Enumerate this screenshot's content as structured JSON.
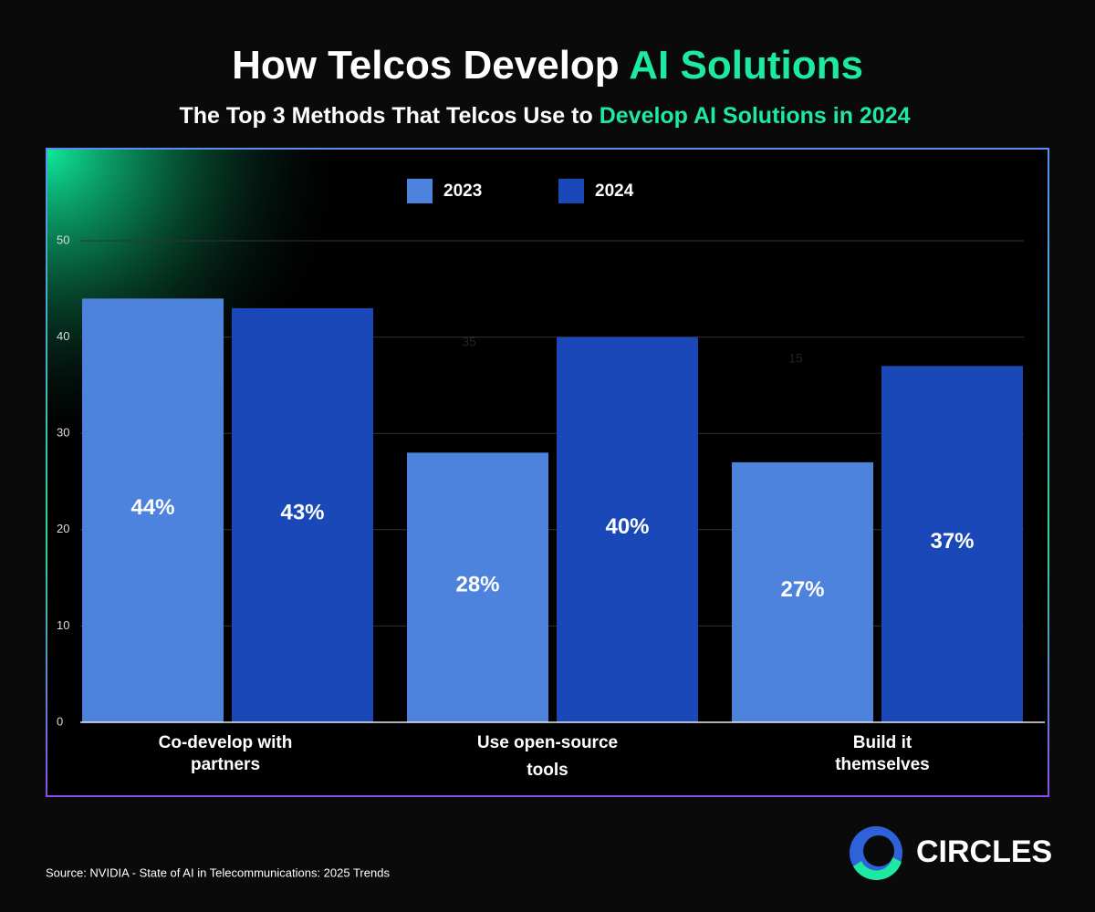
{
  "chart_data": {
    "type": "bar",
    "title": {
      "lead": "How Telcos Develop",
      "highlight": "AI Solutions"
    },
    "subtitle": {
      "lead": "The Top 3 Methods That Telcos Use to",
      "highlight": "Develop AI Solutions in 2024"
    },
    "categories": [
      "Co-develop with partners",
      "Use open-source tools",
      "Build it themselves"
    ],
    "series": [
      {
        "name": "2023",
        "color": "#4d83dc",
        "values": [
          44,
          28,
          27
        ],
        "value_labels": [
          "44%",
          "28%",
          "27%"
        ]
      },
      {
        "name": "2024",
        "color": "#1b48b8",
        "values": [
          43,
          40,
          37
        ],
        "value_labels": [
          "43%",
          "40%",
          "37%"
        ]
      }
    ],
    "ylim": [
      0,
      50
    ],
    "yticks": [
      0,
      10,
      20,
      30,
      40,
      50
    ],
    "grid": true,
    "legend": "top",
    "annotations": [
      "35",
      "15"
    ],
    "source": "Source: NVIDIA - State of AI in Telecommunications: 2025 Trends",
    "logo": "CIRCLES"
  }
}
